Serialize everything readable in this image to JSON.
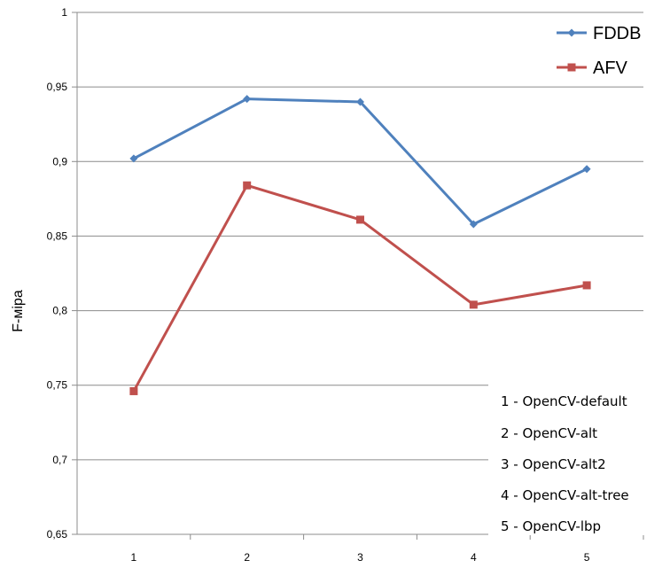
{
  "chart_data": {
    "type": "line",
    "title": "",
    "xlabel": "",
    "ylabel": "F-міра",
    "categories": [
      "1",
      "2",
      "3",
      "4",
      "5"
    ],
    "ylim": [
      0.65,
      1
    ],
    "yticks": [
      {
        "value": 0.65,
        "label": "0,65"
      },
      {
        "value": 0.7,
        "label": "0,7"
      },
      {
        "value": 0.75,
        "label": "0,75"
      },
      {
        "value": 0.8,
        "label": "0,8"
      },
      {
        "value": 0.85,
        "label": "0,85"
      },
      {
        "value": 0.9,
        "label": "0,9"
      },
      {
        "value": 0.95,
        "label": "0,95"
      },
      {
        "value": 1,
        "label": "1"
      }
    ],
    "grid": true,
    "legend_position": "top-right",
    "series": [
      {
        "name": "FDDB",
        "color": "#4F81BD",
        "marker": "diamond",
        "values": [
          0.902,
          0.942,
          0.94,
          0.858,
          0.895
        ]
      },
      {
        "name": "AFV",
        "color": "#C0504D",
        "marker": "square",
        "values": [
          0.746,
          0.884,
          0.861,
          0.804,
          0.817
        ]
      }
    ],
    "annotations": [
      "1 -  OpenCV-default",
      "2 -  OpenCV-alt",
      "3 -  OpenCV-alt2",
      "4 -  OpenCV-alt-tree",
      "5 -  OpenCV-lbp"
    ]
  }
}
